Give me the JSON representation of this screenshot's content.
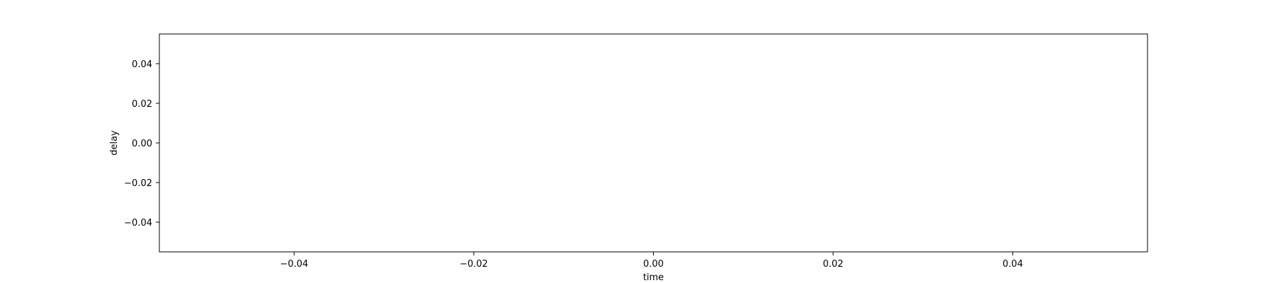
{
  "chart_data": {
    "type": "line",
    "title": "",
    "xlabel": "time",
    "ylabel": "delay",
    "xlim": [
      -0.055,
      0.055
    ],
    "ylim": [
      -0.055,
      0.055
    ],
    "xticks": [
      -0.04,
      -0.02,
      0.0,
      0.02,
      0.04
    ],
    "xtick_labels": [
      "−0.04",
      "−0.02",
      "0.00",
      "0.02",
      "0.04"
    ],
    "yticks": [
      0.04,
      0.02,
      0.0,
      -0.02,
      -0.04
    ],
    "ytick_labels": [
      "0.04",
      "0.02",
      "0.00",
      "−0.02",
      "−0.04"
    ],
    "grid": false,
    "series": [
      {
        "x": [],
        "y": []
      }
    ]
  }
}
